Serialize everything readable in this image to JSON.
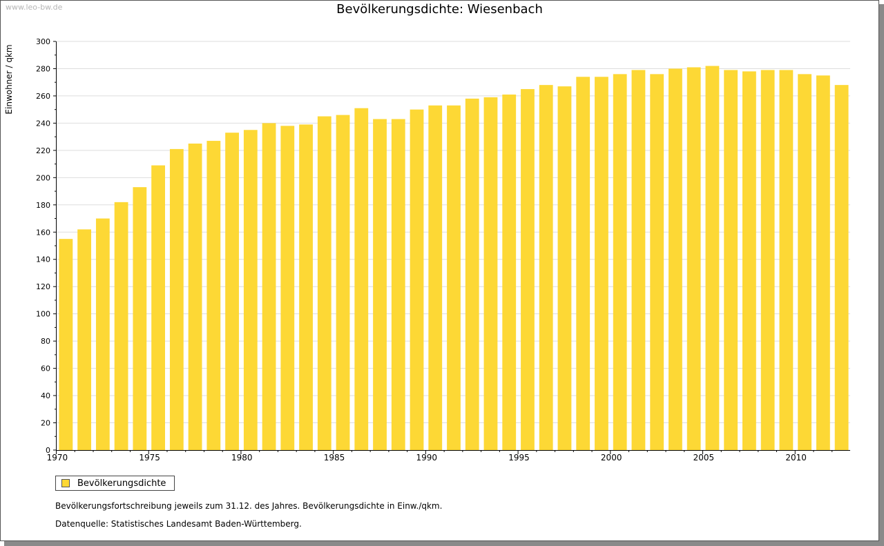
{
  "watermark": "www.leo-bw.de",
  "colors": {
    "bar": "#fdd835",
    "grid": "#dddddd",
    "axis": "#000000"
  },
  "notes": {
    "line1": "Bevölkerungsfortschreibung jeweils zum 31.12. des Jahres. Bevölkerungsdichte in Einw./qkm.",
    "line2": "Datenquelle: Statistisches Landesamt Baden-Württemberg."
  },
  "chart_data": {
    "type": "bar",
    "title": "Bevölkerungsdichte: Wiesenbach",
    "xlabel": "",
    "ylabel": "Einwohner / qkm",
    "ylim": [
      0,
      300
    ],
    "yticks": [
      0,
      20,
      40,
      60,
      80,
      100,
      120,
      140,
      160,
      180,
      200,
      220,
      240,
      260,
      280,
      300
    ],
    "xtick_labels": [
      "1970",
      "1975",
      "1980",
      "1985",
      "1990",
      "1995",
      "2000",
      "2005",
      "2010"
    ],
    "grid": true,
    "legend": {
      "position": "bottom-left",
      "entries": [
        "Bevölkerungsdichte"
      ]
    },
    "categories": [
      1970,
      1971,
      1972,
      1973,
      1974,
      1975,
      1976,
      1977,
      1978,
      1979,
      1980,
      1981,
      1982,
      1983,
      1984,
      1985,
      1986,
      1987,
      1988,
      1989,
      1990,
      1991,
      1992,
      1993,
      1994,
      1995,
      1996,
      1997,
      1998,
      1999,
      2000,
      2001,
      2002,
      2003,
      2004,
      2005,
      2006,
      2007,
      2008,
      2009,
      2010,
      2011,
      2012
    ],
    "series": [
      {
        "name": "Bevölkerungsdichte",
        "values": [
          155,
          162,
          170,
          182,
          193,
          209,
          221,
          225,
          227,
          233,
          235,
          240,
          238,
          239,
          245,
          246,
          251,
          243,
          243,
          250,
          253,
          253,
          258,
          259,
          261,
          265,
          268,
          267,
          274,
          274,
          276,
          279,
          276,
          280,
          281,
          282,
          279,
          278,
          279,
          279,
          276,
          275,
          268
        ]
      }
    ]
  }
}
